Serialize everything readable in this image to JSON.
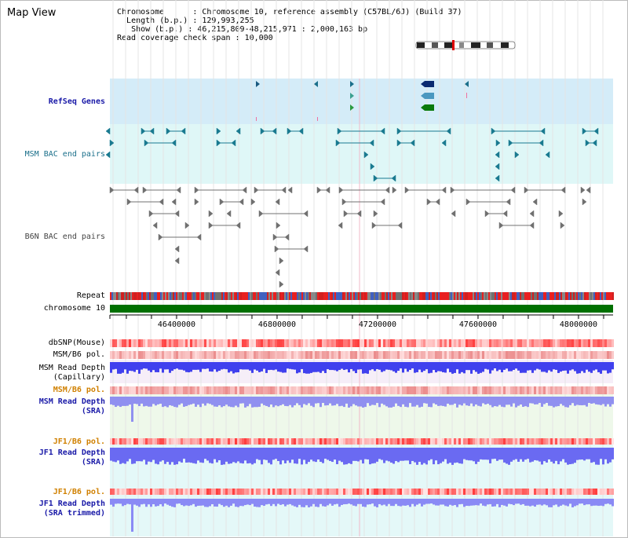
{
  "title": "Map View",
  "info": {
    "chromosome_label": "Chromosome",
    "chromosome_value": "Chromosome 10, reference assembly (C57BL/6J) (Build 37)",
    "length_label": "Length (b.p.)",
    "length_value": "129,993,255",
    "show_label": "Show (b.p.)",
    "show_value": "46,215,809-48,215,971 : 2,000,163 bp",
    "read_span_label": "Read coverage check span",
    "read_span_value": "10,000"
  },
  "tracks": {
    "refseq": "RefSeq Genes",
    "msm_bac": "MSM BAC end pairs",
    "b6n_bac": "B6N BAC end pairs",
    "repeat": "Repeat",
    "chromosome": "chromosome 10",
    "dbsnp": "dbSNP(Mouse)",
    "msm_b6_pol_1": "MSM/B6 pol.",
    "msm_read_cap": "MSM Read Depth\n(Capillary)",
    "msm_b6_pol_2": "MSM/B6 pol.",
    "msm_read_sra": "MSM Read Depth\n(SRA)",
    "jf1_b6_pol_1": "JF1/B6 pol.",
    "jf1_read_sra": "JF1 Read Depth\n(SRA)",
    "jf1_b6_pol_2": "JF1/B6 pol.",
    "jf1_read_trim": "JF1 Read Depth\n(SRA trimmed)"
  },
  "axis": {
    "ticks": [
      "46400000",
      "46800000",
      "47200000",
      "47600000",
      "48000000"
    ]
  },
  "colors": {
    "refseq_bg": "#d4ecf8",
    "msm_bac_bg": "#dff7f7",
    "feature_teal": "#1a7a90",
    "feature_gray": "#808080",
    "chromosome_bar": "#007000",
    "snp_red": "#e8302a",
    "depth_blue": "#3030ff",
    "depth_light": "#8a8af5"
  }
}
